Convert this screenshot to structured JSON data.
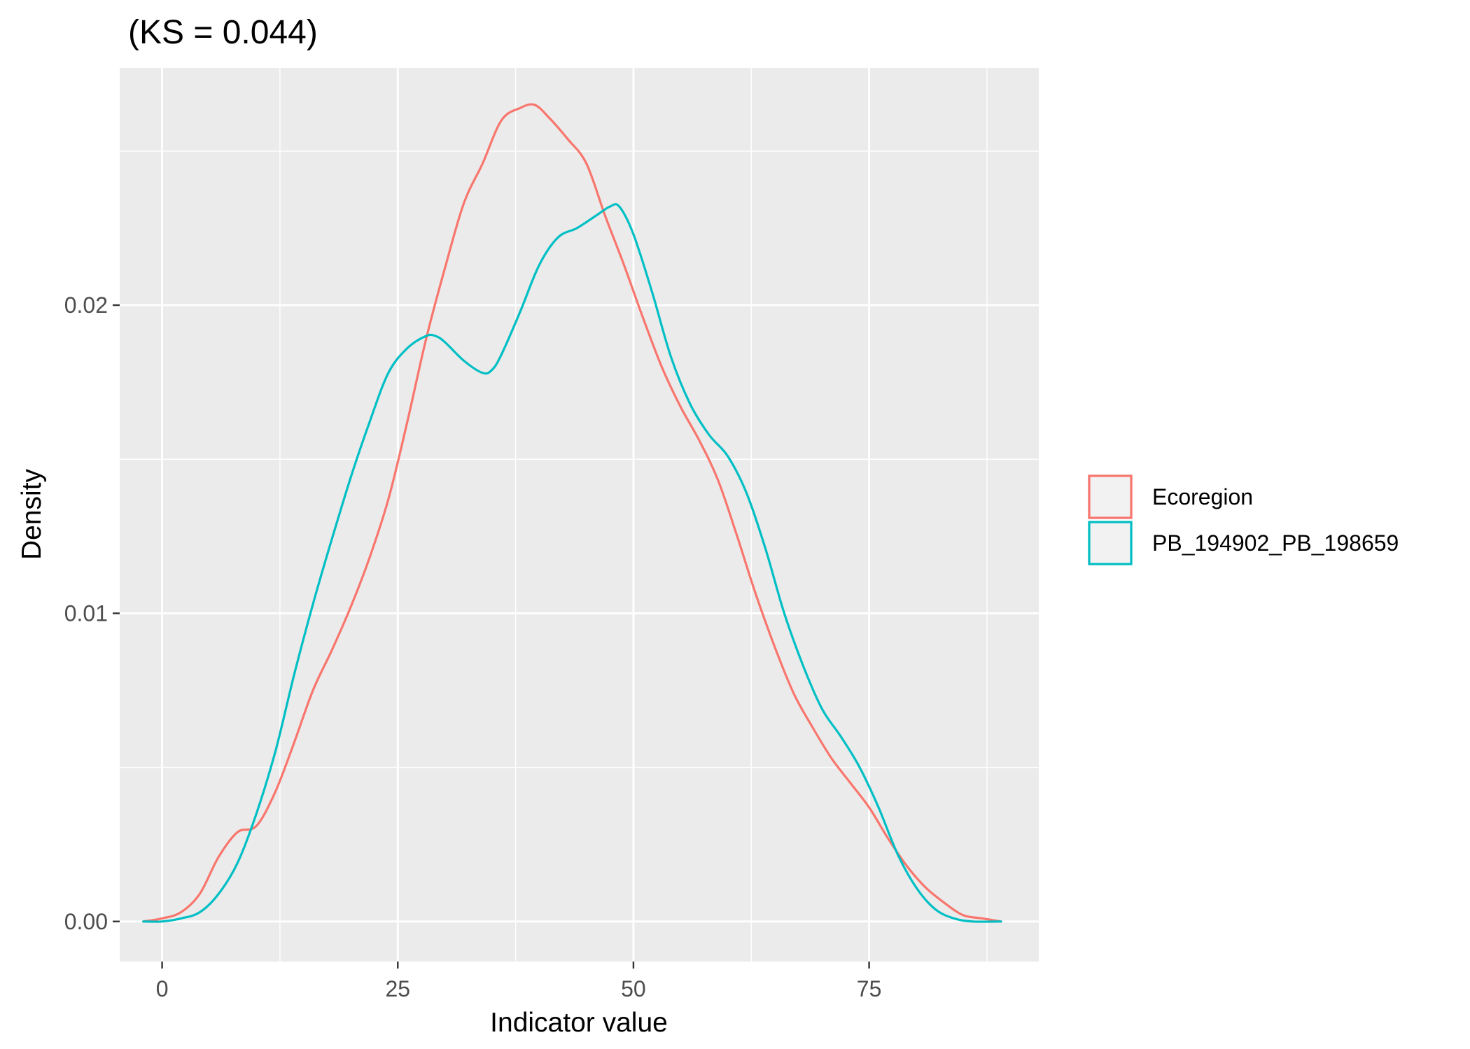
{
  "chart_data": {
    "type": "line",
    "title": "(KS = 0.044)",
    "xlabel": "Indicator value",
    "ylabel": "Density",
    "xlim": [
      -4.5,
      93
    ],
    "ylim": [
      -0.0013,
      0.0277
    ],
    "x_ticks": [
      0,
      25,
      50,
      75
    ],
    "x_tick_labels": [
      "0",
      "25",
      "50",
      "75"
    ],
    "x_minor_ticks": [
      12.5,
      37.5,
      62.5,
      87.5
    ],
    "y_ticks": [
      0.0,
      0.01,
      0.02
    ],
    "y_tick_labels": [
      "0.00",
      "0.01",
      "0.02"
    ],
    "y_minor_ticks": [
      0.005,
      0.015,
      0.025
    ],
    "grid": true,
    "legend_position": "right",
    "background": "#ebebeb",
    "series": [
      {
        "name": "Ecoregion",
        "color": "#F8766D",
        "x": [
          -2,
          0,
          2,
          4,
          6,
          8,
          10,
          12,
          14,
          16,
          18,
          20,
          22,
          24,
          26,
          28,
          30,
          32,
          34,
          36,
          38,
          39.5,
          41,
          43,
          45,
          47,
          49,
          51,
          53,
          55,
          57,
          59,
          61,
          63,
          65,
          67,
          69,
          71,
          73,
          75,
          77,
          79,
          81,
          83,
          85,
          87,
          89
        ],
        "y": [
          0.0,
          0.0001,
          0.0003,
          0.0009,
          0.0021,
          0.0029,
          0.0031,
          0.0042,
          0.0058,
          0.0075,
          0.0088,
          0.0102,
          0.0118,
          0.0137,
          0.0162,
          0.0189,
          0.0212,
          0.0233,
          0.0246,
          0.026,
          0.0264,
          0.0265,
          0.0261,
          0.0254,
          0.0246,
          0.0229,
          0.0213,
          0.0196,
          0.018,
          0.0167,
          0.0156,
          0.0143,
          0.0125,
          0.0106,
          0.0089,
          0.0074,
          0.0063,
          0.0053,
          0.0045,
          0.0037,
          0.0027,
          0.0018,
          0.0011,
          0.0006,
          0.0002,
          0.0001,
          0.0
        ]
      },
      {
        "name": "PB_194902_PB_198659",
        "color": "#00BFC4",
        "x": [
          -2,
          0,
          2,
          4,
          6,
          8,
          10,
          12,
          14,
          16,
          18,
          20,
          22,
          24,
          26,
          28,
          29,
          30,
          32,
          34,
          35,
          36,
          38,
          40,
          42,
          44,
          46,
          47.5,
          48.5,
          50,
          52,
          54,
          56,
          58,
          60,
          62,
          64,
          66,
          68,
          70,
          72,
          74,
          76,
          78,
          80,
          82,
          84,
          86,
          89
        ],
        "y": [
          0.0,
          0.0,
          0.0001,
          0.0003,
          0.0009,
          0.0019,
          0.0035,
          0.0055,
          0.008,
          0.0103,
          0.0124,
          0.0144,
          0.0162,
          0.0178,
          0.0186,
          0.019,
          0.019,
          0.0188,
          0.0182,
          0.0178,
          0.0179,
          0.0184,
          0.0198,
          0.0213,
          0.0222,
          0.0225,
          0.0229,
          0.0232,
          0.0232,
          0.0223,
          0.0204,
          0.0183,
          0.0168,
          0.0158,
          0.0151,
          0.0139,
          0.0121,
          0.01,
          0.0083,
          0.0069,
          0.006,
          0.005,
          0.0037,
          0.0022,
          0.0011,
          0.0004,
          0.0001,
          0.0,
          0.0
        ]
      }
    ]
  }
}
